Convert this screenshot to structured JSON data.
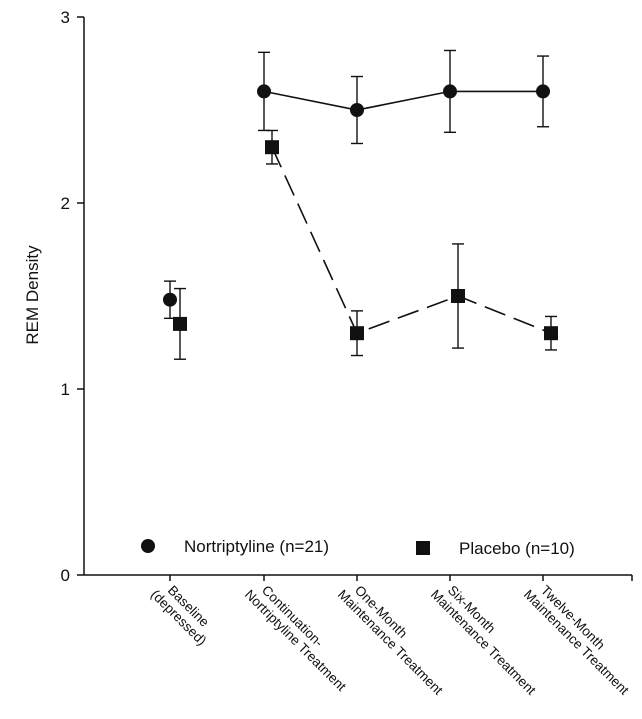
{
  "chart_data": {
    "type": "line",
    "ylabel": "REM Density",
    "ylim": [
      0,
      3
    ],
    "yticks": [
      0,
      1,
      2,
      3
    ],
    "categories": [
      [
        "Baseline",
        "(depressed)"
      ],
      [
        "Continuation-",
        "Nortriptyline Treatment"
      ],
      [
        "One-Month",
        "Maintenance Treatment"
      ],
      [
        "Six-Month",
        "Maintenance Treatment"
      ],
      [
        "Twelve-Month",
        "Maintenance Treatment"
      ]
    ],
    "legend_position": "bottom",
    "series": [
      {
        "name": "Nortriptyline (n=21)",
        "marker": "circle",
        "line_style": "solid",
        "values": [
          1.48,
          2.6,
          2.5,
          2.6,
          2.6
        ],
        "errors": [
          0.1,
          0.21,
          0.18,
          0.22,
          0.19
        ],
        "connected_from_index": 1
      },
      {
        "name": "Placebo (n=10)",
        "marker": "square",
        "line_style": "dashed",
        "values": [
          1.35,
          2.3,
          1.3,
          1.5,
          1.3
        ],
        "errors": [
          0.19,
          0.09,
          0.12,
          0.28,
          0.09
        ],
        "connected_from_index": 1
      }
    ]
  }
}
